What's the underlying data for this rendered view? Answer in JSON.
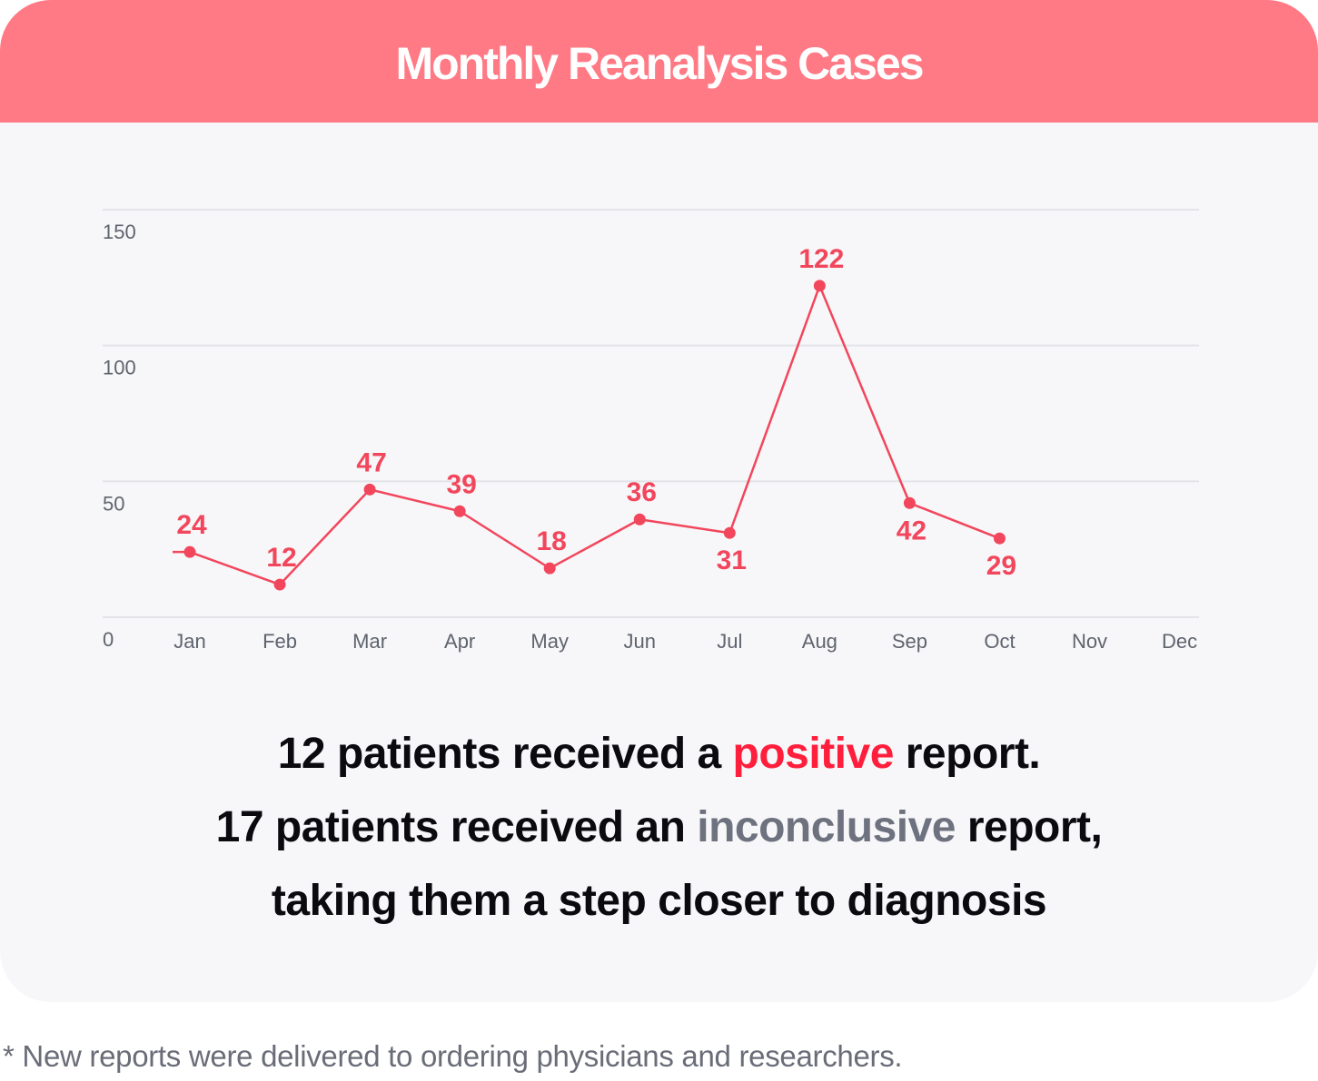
{
  "title": "Monthly Reanalysis Cases",
  "chart_data": {
    "type": "line",
    "title": "Monthly Reanalysis Cases",
    "categories": [
      "Jan",
      "Feb",
      "Mar",
      "Apr",
      "May",
      "Jun",
      "Jul",
      "Aug",
      "Sep",
      "Oct",
      "Nov",
      "Dec"
    ],
    "values": [
      24,
      12,
      47,
      39,
      18,
      36,
      31,
      122,
      42,
      29,
      null,
      null
    ],
    "yticks": [
      0,
      50,
      100,
      150
    ],
    "ylim": [
      0,
      150
    ],
    "xlabel": "",
    "ylabel": "",
    "grid": true,
    "line_color": "#f2465c",
    "label_color": "#f2465c"
  },
  "summary": {
    "line1_pre": "12 patients received a ",
    "line1_highlight": "positive",
    "line1_post": " report.",
    "line2_pre": "17 patients received an ",
    "line2_highlight": "inconclusive",
    "line2_post": " report,",
    "line3": "taking them a step closer to diagnosis"
  },
  "footnote": "* New reports were delivered to ordering physicians and researchers.",
  "colors": {
    "header": "#ff7a85",
    "card": "#f7f7f9",
    "positive": "#ff1f3d",
    "inconclusive": "#6e727f"
  }
}
